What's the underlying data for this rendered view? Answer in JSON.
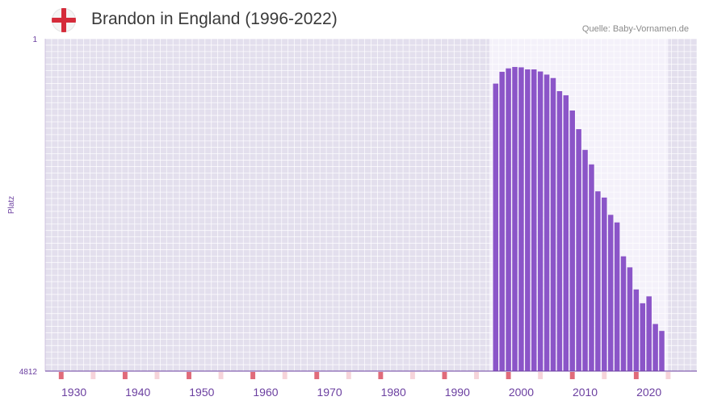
{
  "header": {
    "title": "Brandon in England (1996-2022)",
    "source": "Quelle: Baby-Vornamen.de",
    "flag_icon": "england-flag-icon"
  },
  "colors": {
    "bar": "#8b55c8",
    "background_out": "#e3dfed",
    "background_active": "#f4f1fa",
    "grid": "#ffffff",
    "marker_major": "#e06b7a",
    "marker_minor": "#f6d4da",
    "axis": "#6b3fa0"
  },
  "chart_data": {
    "type": "bar",
    "title": "Brandon in England (1996-2022)",
    "xlabel": "",
    "ylabel": "Platz",
    "ylim": [
      1,
      4812
    ],
    "y_inverted": true,
    "x_range": [
      1926,
      2027
    ],
    "x_ticks": [
      "1930",
      "1940",
      "1950",
      "1960",
      "1970",
      "1980",
      "1990",
      "2000",
      "2010",
      "2020"
    ],
    "y_tick_top": "1",
    "y_tick_bottom": "4812",
    "x": [
      1996,
      1997,
      1998,
      1999,
      2000,
      2001,
      2002,
      2003,
      2004,
      2005,
      2006,
      2007,
      2008,
      2009,
      2010,
      2011,
      2012,
      2013,
      2014,
      2015,
      2016,
      2017,
      2018,
      2019,
      2020,
      2021,
      2022
    ],
    "values": [
      650,
      480,
      430,
      410,
      415,
      445,
      445,
      475,
      520,
      570,
      760,
      820,
      1040,
      1310,
      1610,
      1820,
      2210,
      2300,
      2550,
      2660,
      3150,
      3310,
      3630,
      3830,
      3730,
      4130,
      4230
    ]
  }
}
